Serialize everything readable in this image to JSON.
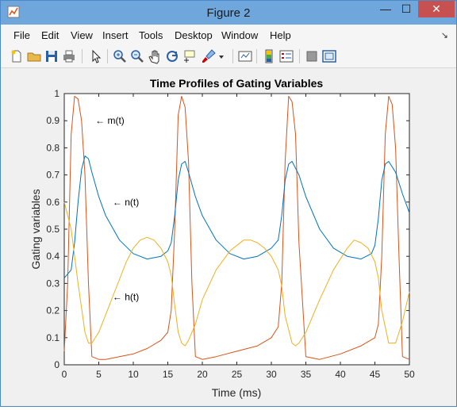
{
  "window": {
    "title": "Figure 2",
    "controls": {
      "minimize": "—",
      "maximize": "☐",
      "close": "✕"
    }
  },
  "menu": [
    "File",
    "Edit",
    "View",
    "Insert",
    "Tools",
    "Desktop",
    "Window",
    "Help"
  ],
  "toolbar_icons": [
    "new-figure-icon",
    "open-file-icon",
    "save-icon",
    "print-icon",
    "edit-plot-arrow-icon",
    "zoom-in-icon",
    "zoom-out-icon",
    "pan-hand-icon",
    "rotate-3d-icon",
    "data-cursor-icon",
    "brush-icon",
    "brush-dropdown-icon",
    "link-plot-icon",
    "insert-colorbar-icon",
    "insert-legend-icon",
    "hide-plot-tools-icon",
    "show-plot-tools-icon"
  ],
  "colors": {
    "m": "#d95319",
    "n": "#0072bd",
    "h": "#edb120",
    "accent": "#6fa7dc",
    "close": "#c75050"
  },
  "chart_data": {
    "type": "line",
    "title": "Time Profiles of Gating Variables",
    "xlabel": "Time (ms)",
    "ylabel": "Gating variables",
    "xlim": [
      0,
      50
    ],
    "ylim": [
      0,
      1
    ],
    "xticks": [
      "0",
      "5",
      "10",
      "15",
      "20",
      "25",
      "30",
      "35",
      "40",
      "45",
      "50"
    ],
    "yticks": [
      "0",
      "0.1",
      "0.2",
      "0.3",
      "0.4",
      "0.5",
      "0.6",
      "0.7",
      "0.8",
      "0.9",
      "1"
    ],
    "grid": false,
    "annotations": [
      {
        "text": "← m(t)",
        "x": 4.5,
        "y": 0.9
      },
      {
        "text": "← n(t)",
        "x": 7,
        "y": 0.6
      },
      {
        "text": "← h(t)",
        "x": 7,
        "y": 0.25
      }
    ],
    "series": [
      {
        "name": "m(t)",
        "x": [
          0,
          0.5,
          1,
          1.5,
          2,
          2.5,
          3,
          3.5,
          4,
          5,
          6,
          8,
          10,
          12,
          14,
          15,
          15.5,
          16,
          16.5,
          17,
          17.5,
          18,
          18.5,
          19,
          20,
          22,
          25,
          28,
          30,
          31,
          31.5,
          32,
          32.5,
          33,
          33.5,
          34,
          35,
          37,
          40,
          43,
          45,
          45.5,
          46,
          46.5,
          47,
          47.5,
          48,
          48.5,
          49,
          50
        ],
        "y": [
          0.05,
          0.3,
          0.85,
          0.99,
          0.98,
          0.9,
          0.7,
          0.3,
          0.03,
          0.02,
          0.02,
          0.03,
          0.04,
          0.06,
          0.09,
          0.12,
          0.2,
          0.5,
          0.92,
          0.99,
          0.95,
          0.75,
          0.3,
          0.03,
          0.02,
          0.03,
          0.05,
          0.07,
          0.1,
          0.14,
          0.3,
          0.75,
          0.99,
          0.97,
          0.85,
          0.45,
          0.03,
          0.02,
          0.04,
          0.07,
          0.1,
          0.15,
          0.4,
          0.85,
          0.99,
          0.96,
          0.8,
          0.4,
          0.03,
          0.02
        ]
      },
      {
        "name": "n(t)",
        "x": [
          0,
          1,
          1.5,
          2,
          2.5,
          3,
          3.5,
          4,
          5,
          6,
          8,
          10,
          12,
          14,
          15,
          15.5,
          16,
          16.5,
          17,
          17.5,
          18,
          19,
          20,
          22,
          24,
          26,
          28,
          30,
          31,
          31.5,
          32,
          32.5,
          33,
          34,
          35,
          37,
          39,
          41,
          43,
          44.5,
          45,
          45.5,
          46,
          46.5,
          47,
          48,
          49,
          50
        ],
        "y": [
          0.32,
          0.35,
          0.45,
          0.6,
          0.72,
          0.77,
          0.76,
          0.71,
          0.62,
          0.55,
          0.46,
          0.41,
          0.39,
          0.4,
          0.42,
          0.45,
          0.55,
          0.68,
          0.74,
          0.75,
          0.71,
          0.62,
          0.55,
          0.46,
          0.41,
          0.39,
          0.4,
          0.43,
          0.46,
          0.55,
          0.68,
          0.74,
          0.75,
          0.7,
          0.62,
          0.5,
          0.43,
          0.4,
          0.39,
          0.41,
          0.44,
          0.54,
          0.68,
          0.74,
          0.75,
          0.71,
          0.63,
          0.56
        ]
      },
      {
        "name": "h(t)",
        "x": [
          0,
          1,
          2,
          3,
          3.5,
          4,
          5,
          7,
          9,
          10,
          11,
          12,
          13,
          14,
          15,
          15.5,
          16,
          16.5,
          17,
          17.5,
          18,
          19,
          20,
          22,
          24,
          26,
          27,
          28,
          29,
          30,
          31,
          31.5,
          32,
          33,
          33.5,
          34,
          35,
          37,
          39,
          41,
          42,
          43,
          44,
          45,
          45.5,
          46,
          47,
          48,
          49,
          50
        ],
        "y": [
          0.6,
          0.5,
          0.3,
          0.12,
          0.08,
          0.08,
          0.12,
          0.25,
          0.38,
          0.43,
          0.46,
          0.47,
          0.46,
          0.43,
          0.38,
          0.33,
          0.22,
          0.12,
          0.08,
          0.07,
          0.09,
          0.15,
          0.24,
          0.35,
          0.42,
          0.46,
          0.46,
          0.45,
          0.43,
          0.4,
          0.35,
          0.29,
          0.18,
          0.08,
          0.07,
          0.08,
          0.12,
          0.24,
          0.35,
          0.43,
          0.46,
          0.45,
          0.43,
          0.38,
          0.32,
          0.2,
          0.08,
          0.08,
          0.16,
          0.27
        ]
      }
    ]
  }
}
